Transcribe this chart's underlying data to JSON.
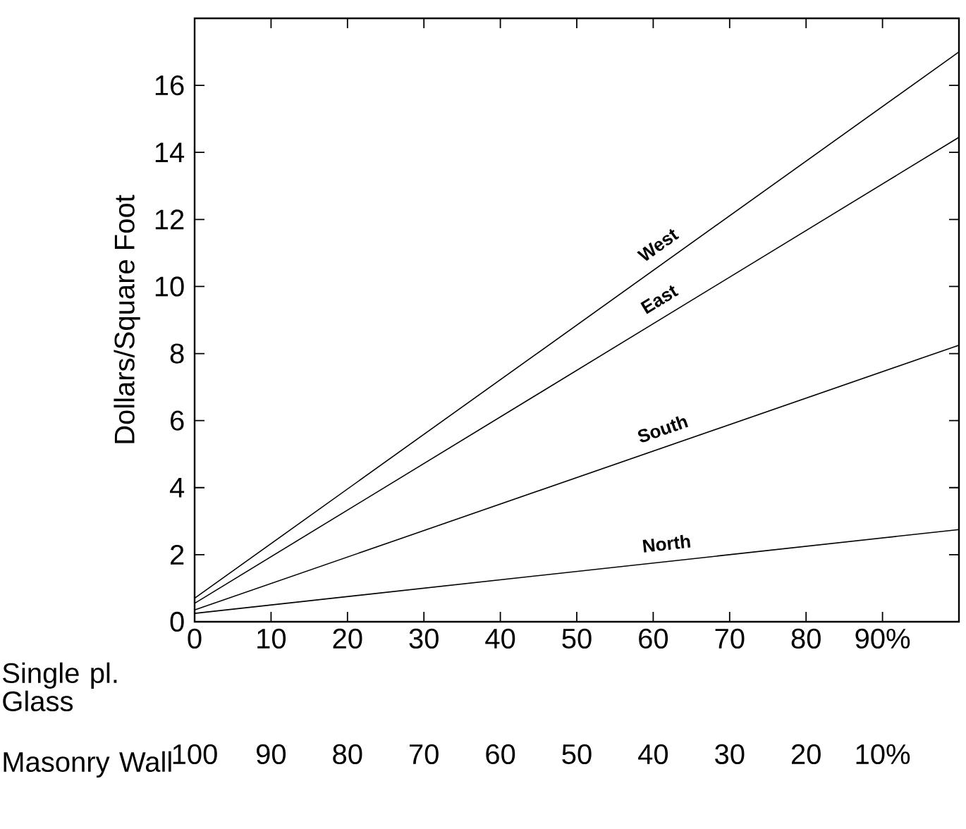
{
  "chart_data": {
    "type": "line",
    "xlabel": "Single pl. Glass",
    "ylabel": "Dollars/Square Foot",
    "x2label": "Masonry Wall",
    "x": [
      0,
      100
    ],
    "xlim": [
      0,
      100
    ],
    "xticks": [
      0,
      10,
      20,
      30,
      40,
      50,
      60,
      70,
      80,
      {
        "value": 90,
        "label": "90%"
      }
    ],
    "x2lim": [
      100,
      0
    ],
    "x2ticks": [
      100,
      90,
      80,
      70,
      60,
      50,
      40,
      30,
      20,
      {
        "value": 10,
        "label": "10%"
      }
    ],
    "ylim": [
      0,
      18
    ],
    "yticks": [
      0,
      2,
      4,
      6,
      8,
      10,
      12,
      14,
      16
    ],
    "grid": false,
    "legend": false,
    "marker": "none",
    "line_style": "solid",
    "series": [
      {
        "name": "West",
        "color": "#000000",
        "values": [
          0.7,
          17.0
        ]
      },
      {
        "name": "East",
        "color": "#000000",
        "values": [
          0.55,
          14.45
        ]
      },
      {
        "name": "South",
        "color": "#000000",
        "values": [
          0.35,
          8.25
        ]
      },
      {
        "name": "North",
        "color": "#000000",
        "values": [
          0.25,
          2.75
        ]
      }
    ]
  }
}
